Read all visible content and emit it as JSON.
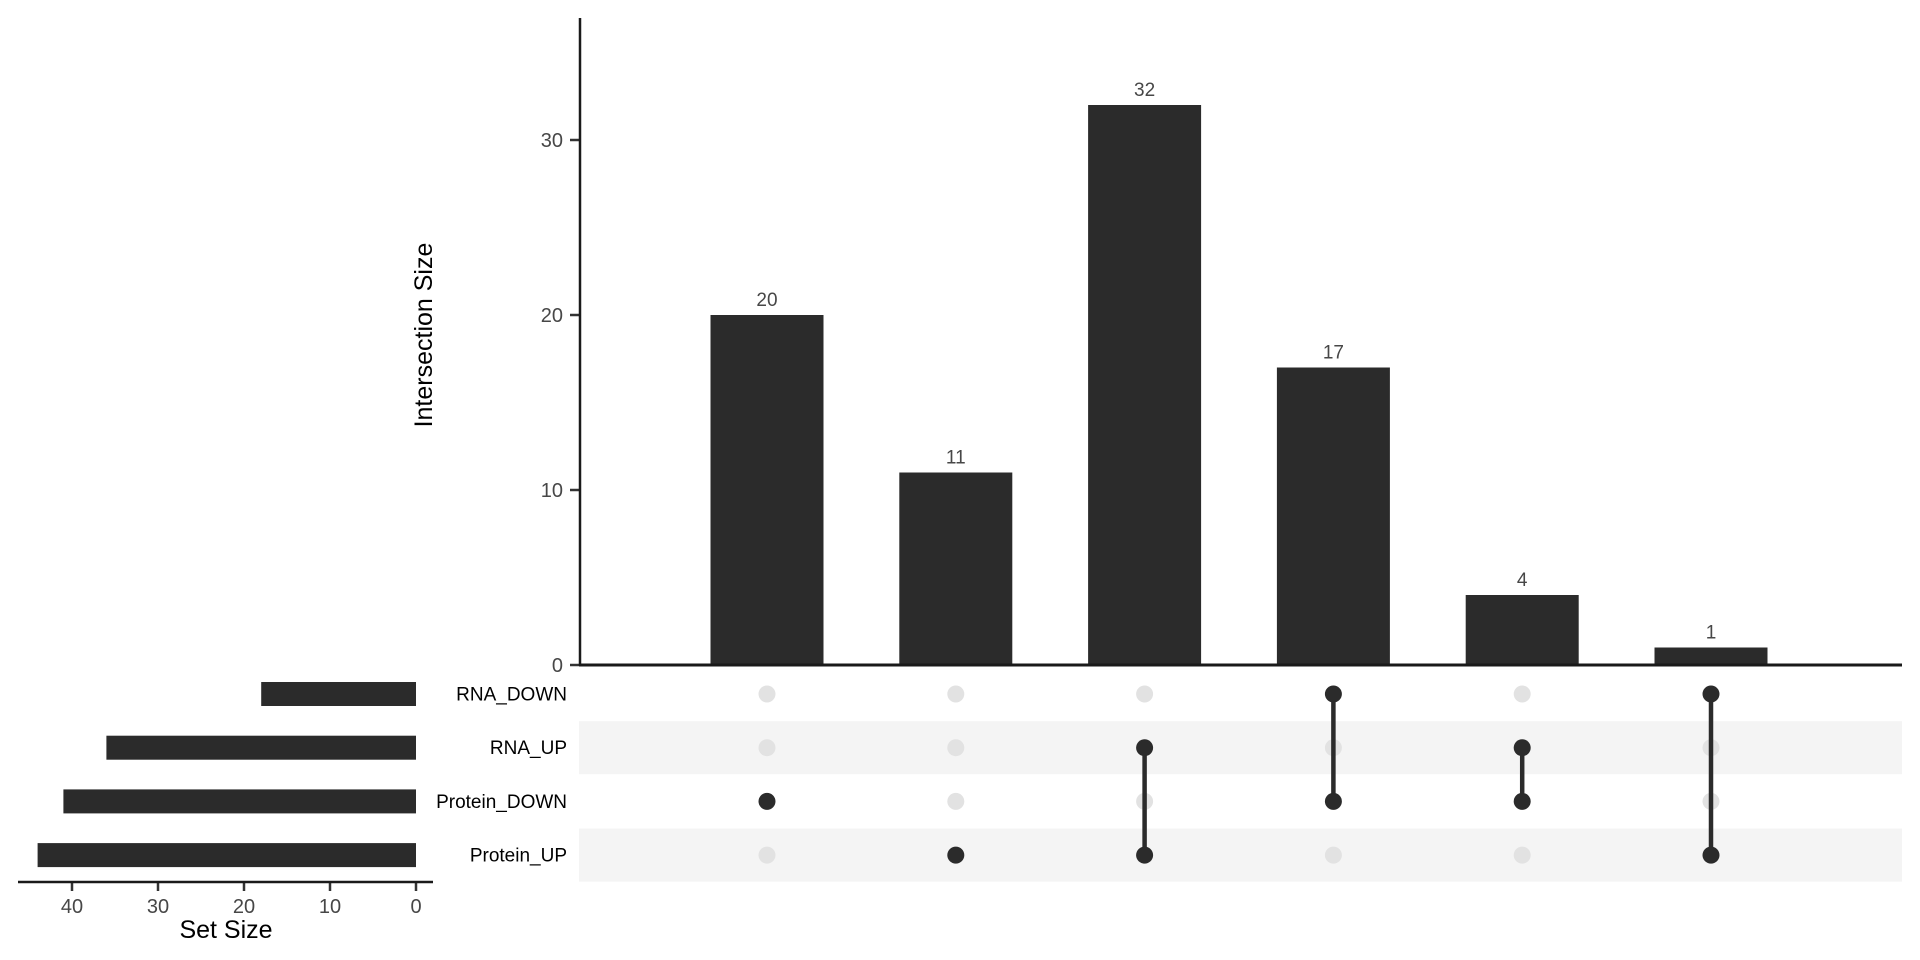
{
  "colors": {
    "bar": "#2b2b2b",
    "dot_active": "#2b2b2b",
    "dot_inactive": "#e2e2e2",
    "connector": "#2b2b2b",
    "stripe": "#f4f4f4",
    "axis_line": "#1a1a1a",
    "tick_mark": "#333333"
  },
  "chart_data": {
    "type": "upset",
    "title": "",
    "main_axis": {
      "ylabel": "Intersection Size",
      "ticks": [
        0,
        10,
        20,
        30
      ],
      "ylim": [
        0,
        37
      ]
    },
    "intersections": [
      {
        "sets": [
          "Protein_DOWN"
        ],
        "value": 20
      },
      {
        "sets": [
          "Protein_UP"
        ],
        "value": 11
      },
      {
        "sets": [
          "RNA_UP",
          "Protein_UP"
        ],
        "value": 32
      },
      {
        "sets": [
          "RNA_DOWN",
          "Protein_DOWN"
        ],
        "value": 17
      },
      {
        "sets": [
          "RNA_UP",
          "Protein_DOWN"
        ],
        "value": 4
      },
      {
        "sets": [
          "RNA_DOWN",
          "Protein_UP"
        ],
        "value": 1
      }
    ],
    "sets": [
      {
        "name": "RNA_DOWN",
        "size": 18,
        "striped": false
      },
      {
        "name": "RNA_UP",
        "size": 36,
        "striped": true
      },
      {
        "name": "Protein_DOWN",
        "size": 41,
        "striped": false
      },
      {
        "name": "Protein_UP",
        "size": 44,
        "striped": true
      }
    ],
    "set_axis": {
      "xlabel": "Set Size",
      "ticks": [
        40,
        30,
        20,
        10,
        0
      ],
      "xlim": [
        0,
        46
      ]
    }
  }
}
